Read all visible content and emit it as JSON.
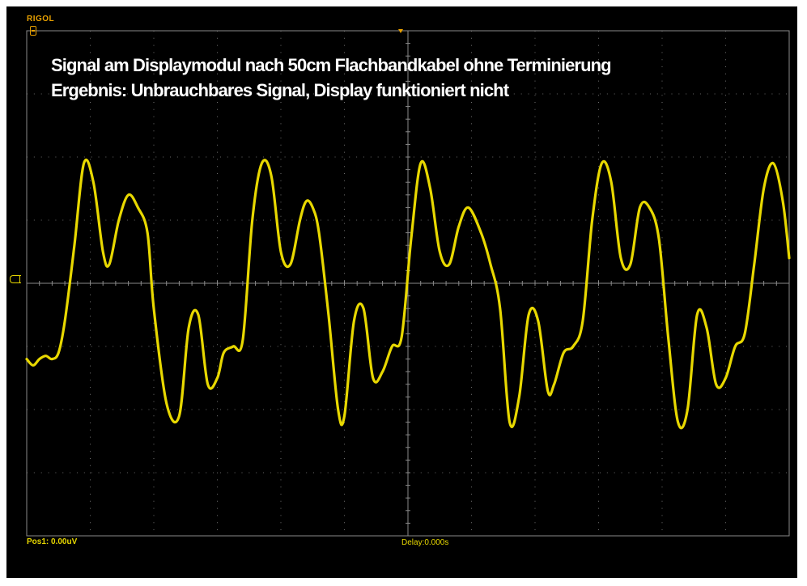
{
  "scope": {
    "brand": "RIGOL",
    "position_readout": "Pos1:  0.00uV",
    "delay_readout": "Delay:0.000s",
    "annotation": [
      "Signal am Displaymodul nach 50cm Flachbandkabel ohne Terminierung",
      "Ergebnis: Unbrauchbares Signal, Display funktioniert nicht"
    ]
  },
  "chart_data": {
    "type": "line",
    "title": "",
    "xlabel": "",
    "ylabel": "",
    "xlim": [
      0,
      12
    ],
    "ylim": [
      -4,
      4
    ],
    "grid": true,
    "x_divisions": 12,
    "y_divisions": 8,
    "trace_color": "#e8d800",
    "background": "#000000",
    "grid_color": "#8a8a8a",
    "series": [
      {
        "x": [
          0.0,
          0.1,
          0.2,
          0.3,
          0.4,
          0.5,
          0.6,
          0.75,
          0.9,
          1.05,
          1.2,
          1.3,
          1.45,
          1.6,
          1.75,
          1.9,
          2.0,
          2.2,
          2.4,
          2.55,
          2.7,
          2.85,
          3.0,
          3.1,
          3.25,
          3.4,
          3.55,
          3.7,
          3.85,
          4.0,
          4.15,
          4.3,
          4.4,
          4.5,
          4.6,
          4.75,
          4.9,
          5.0,
          5.15,
          5.3,
          5.45,
          5.6,
          5.75,
          5.9,
          6.05,
          6.2,
          6.35,
          6.5,
          6.65,
          6.8,
          6.95,
          7.15,
          7.3,
          7.45,
          7.6,
          7.75,
          7.9,
          8.05,
          8.2,
          8.3,
          8.45,
          8.6,
          8.75,
          8.9,
          9.05,
          9.2,
          9.35,
          9.5,
          9.65,
          9.8,
          9.95,
          10.1,
          10.25,
          10.4,
          10.55,
          10.7,
          10.85,
          11.0,
          11.15,
          11.3,
          11.45,
          11.6,
          11.75,
          11.9,
          12.0
        ],
        "y": [
          -1.2,
          -1.3,
          -1.2,
          -1.15,
          -1.2,
          -1.1,
          -0.6,
          0.6,
          1.9,
          1.6,
          0.5,
          0.3,
          1.0,
          1.4,
          1.2,
          0.8,
          -0.4,
          -1.9,
          -2.1,
          -0.7,
          -0.5,
          -1.6,
          -1.5,
          -1.1,
          -1.0,
          -0.9,
          1.0,
          1.9,
          1.7,
          0.5,
          0.3,
          1.0,
          1.3,
          1.2,
          0.8,
          -0.5,
          -2.0,
          -2.1,
          -0.6,
          -0.4,
          -1.5,
          -1.4,
          -1.0,
          -0.85,
          0.7,
          1.9,
          1.5,
          0.5,
          0.3,
          0.9,
          1.2,
          0.8,
          0.3,
          -0.4,
          -2.2,
          -1.8,
          -0.5,
          -0.6,
          -1.7,
          -1.6,
          -1.1,
          -1.0,
          -0.6,
          1.0,
          1.9,
          1.6,
          0.4,
          0.3,
          1.2,
          1.2,
          0.7,
          -0.9,
          -2.2,
          -2.0,
          -0.5,
          -0.7,
          -1.6,
          -1.5,
          -1.0,
          -0.8,
          0.3,
          1.5,
          1.9,
          1.3,
          0.4
        ]
      }
    ]
  }
}
